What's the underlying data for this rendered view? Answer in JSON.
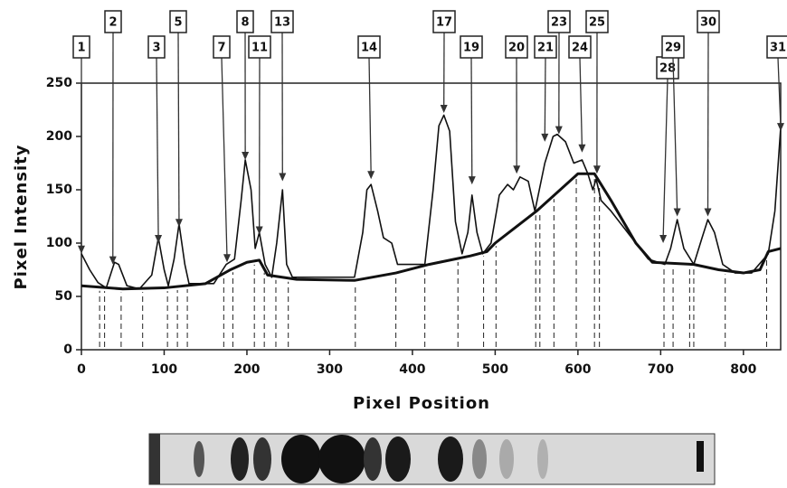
{
  "chart_data": {
    "type": "line",
    "x_label": "Pixel Position",
    "y_label": "Pixel Intensity",
    "xlim": [
      0,
      845
    ],
    "ylim": [
      0,
      250
    ],
    "xticks": [
      0,
      100,
      200,
      300,
      400,
      500,
      600,
      700,
      800
    ],
    "yticks": [
      0,
      50,
      100,
      150,
      200,
      250
    ],
    "series": [
      {
        "color": "#111111",
        "x": [
          0,
          10,
          20,
          30,
          40,
          45,
          55,
          70,
          85,
          93,
          100,
          105,
          112,
          118,
          125,
          130,
          160,
          175,
          185,
          193,
          198,
          205,
          210,
          215,
          222,
          230,
          236,
          243,
          248,
          255,
          330,
          340,
          345,
          350,
          358,
          365,
          375,
          382,
          400,
          415,
          425,
          432,
          438,
          445,
          452,
          460,
          467,
          472,
          478,
          485,
          495,
          505,
          515,
          522,
          530,
          540,
          548,
          560,
          570,
          575,
          585,
          595,
          605,
          612,
          618,
          622,
          628,
          640,
          660,
          685,
          705,
          712,
          720,
          728,
          740,
          750,
          757,
          765,
          775,
          790,
          810,
          830,
          838,
          845
        ],
        "values": [
          90,
          75,
          63,
          58,
          82,
          80,
          60,
          57,
          70,
          105,
          75,
          60,
          85,
          118,
          80,
          62,
          62,
          80,
          85,
          140,
          178,
          150,
          95,
          110,
          80,
          68,
          100,
          150,
          80,
          68,
          68,
          110,
          150,
          155,
          130,
          105,
          100,
          80,
          80,
          80,
          150,
          210,
          220,
          205,
          120,
          90,
          110,
          145,
          110,
          90,
          100,
          145,
          155,
          150,
          162,
          158,
          130,
          175,
          200,
          202,
          195,
          175,
          178,
          165,
          150,
          160,
          140,
          130,
          110,
          85,
          80,
          95,
          122,
          95,
          80,
          105,
          122,
          110,
          80,
          72,
          72,
          90,
          130,
          208
        ]
      },
      {
        "color": "#111111",
        "x": [
          0,
          50,
          100,
          150,
          180,
          200,
          215,
          225,
          260,
          330,
          380,
          420,
          470,
          490,
          500,
          550,
          600,
          620,
          640,
          670,
          690,
          740,
          770,
          800,
          820,
          830,
          845
        ],
        "values": [
          60,
          57,
          58,
          62,
          75,
          82,
          84,
          70,
          66,
          65,
          72,
          80,
          88,
          92,
          100,
          130,
          165,
          165,
          140,
          100,
          82,
          80,
          75,
          72,
          75,
          92,
          95
        ]
      }
    ],
    "boundaries": [
      22,
      28,
      48,
      74,
      104,
      116,
      128,
      172,
      183,
      209,
      221,
      235,
      250,
      331,
      380,
      415,
      455,
      486,
      501,
      549,
      554,
      571,
      598,
      620,
      626,
      704,
      715,
      735,
      740,
      778,
      828
    ],
    "annotations": [
      {
        "label": "1",
        "x": 0,
        "y": 90
      },
      {
        "label": "2",
        "x": 38,
        "y": 80
      },
      {
        "label": "3",
        "x": 93,
        "y": 100
      },
      {
        "label": "5",
        "x": 118,
        "y": 115
      },
      {
        "label": "7",
        "x": 176,
        "y": 82
      },
      {
        "label": "8",
        "x": 198,
        "y": 178
      },
      {
        "label": "11",
        "x": 215,
        "y": 108
      },
      {
        "label": "13",
        "x": 243,
        "y": 158
      },
      {
        "label": "14",
        "x": 350,
        "y": 160
      },
      {
        "label": "17",
        "x": 438,
        "y": 222
      },
      {
        "label": "19",
        "x": 472,
        "y": 155
      },
      {
        "label": "20",
        "x": 526,
        "y": 165
      },
      {
        "label": "21",
        "x": 560,
        "y": 195
      },
      {
        "label": "23",
        "x": 577,
        "y": 202
      },
      {
        "label": "24",
        "x": 605,
        "y": 185
      },
      {
        "label": "25",
        "x": 623,
        "y": 165
      },
      {
        "label": "28",
        "x": 703,
        "y": 100
      },
      {
        "label": "29",
        "x": 720,
        "y": 125
      },
      {
        "label": "30",
        "x": 757,
        "y": 125
      },
      {
        "label": "31",
        "x": 845,
        "y": 205
      }
    ]
  }
}
